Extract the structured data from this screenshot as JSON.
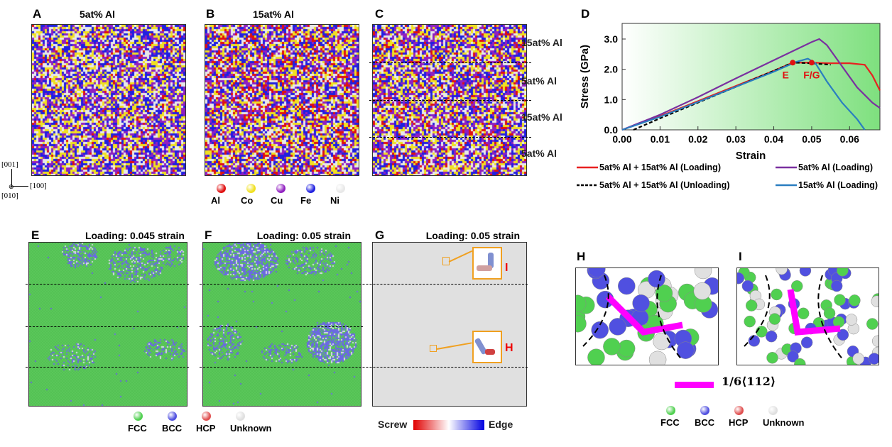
{
  "panels": {
    "a": {
      "letter": "A",
      "title": "5at% Al"
    },
    "b": {
      "letter": "B",
      "title": "15at% Al"
    },
    "c": {
      "letter": "C",
      "layers": [
        "15at% Al",
        "5at% Al",
        "15at% Al",
        "5at% Al"
      ]
    },
    "d": {
      "letter": "D"
    },
    "e": {
      "letter": "E",
      "title": "Loading: 0.045 strain"
    },
    "f": {
      "letter": "F",
      "title": "Loading: 0.05 strain"
    },
    "g": {
      "letter": "G",
      "title": "Loading: 0.05 strain",
      "inset_top": "I",
      "inset_bottom": "H",
      "scale_left": "Screw",
      "scale_right": "Edge"
    },
    "h": {
      "letter": "H"
    },
    "i": {
      "letter": "I"
    }
  },
  "axes_triad": {
    "z": "[001]",
    "x": "[100]",
    "y": "[010]"
  },
  "element_legend": [
    {
      "label": "Al",
      "color": "#e01010"
    },
    {
      "label": "Co",
      "color": "#f0e020"
    },
    {
      "label": "Cu",
      "color": "#9020c0"
    },
    {
      "label": "Fe",
      "color": "#2020e0"
    },
    {
      "label": "Ni",
      "color": "#e8e8e8"
    }
  ],
  "structure_legend": [
    {
      "label": "FCC",
      "color": "#50d050"
    },
    {
      "label": "BCC",
      "color": "#5050e0"
    },
    {
      "label": "HCP",
      "color": "#e05050"
    },
    {
      "label": "Unknown",
      "color": "#e0e0e0"
    }
  ],
  "dislocation_legend": {
    "label": "1/6⟨112⟩",
    "color": "#ff00ff"
  },
  "chart_data": {
    "type": "line",
    "xlabel": "Strain",
    "ylabel": "Stress (GPa)",
    "xlim": [
      0,
      0.068
    ],
    "ylim": [
      0,
      3.5
    ],
    "xticks": [
      "0.00",
      "0.01",
      "0.02",
      "0.03",
      "0.04",
      "0.05",
      "0.06"
    ],
    "yticks": [
      "0.0",
      "1.0",
      "2.0",
      "3.0"
    ],
    "legend": "bottom",
    "series": [
      {
        "name": "5at% Al + 15at% Al (Loading)",
        "color": "#e82020",
        "dash": false,
        "x": [
          0,
          0.01,
          0.02,
          0.03,
          0.04,
          0.045,
          0.05,
          0.055,
          0.06,
          0.064,
          0.066,
          0.068
        ],
        "y": [
          0,
          0.45,
          0.95,
          1.45,
          1.95,
          2.22,
          2.22,
          2.2,
          2.2,
          2.15,
          1.8,
          1.3
        ]
      },
      {
        "name": "5at% Al (Loading)",
        "color": "#7a30a0",
        "dash": false,
        "x": [
          0,
          0.01,
          0.02,
          0.03,
          0.04,
          0.05,
          0.052,
          0.054,
          0.058,
          0.062,
          0.066,
          0.068
        ],
        "y": [
          0,
          0.5,
          1.08,
          1.7,
          2.3,
          2.9,
          3.0,
          2.8,
          2.1,
          1.4,
          0.9,
          0.72
        ]
      },
      {
        "name": "5at% Al + 15at% Al (Unloading)",
        "color": "#000000",
        "dash": true,
        "x": [
          0.003,
          0.01,
          0.02,
          0.03,
          0.04,
          0.045,
          0.05,
          0.055
        ],
        "y": [
          0,
          0.38,
          0.9,
          1.42,
          1.95,
          2.22,
          2.2,
          2.15
        ]
      },
      {
        "name": "15at% Al (Loading)",
        "color": "#2a7ec0",
        "dash": false,
        "x": [
          0,
          0.01,
          0.02,
          0.03,
          0.04,
          0.046,
          0.049,
          0.051,
          0.054,
          0.058,
          0.062,
          0.064
        ],
        "y": [
          0,
          0.43,
          0.92,
          1.42,
          1.92,
          2.25,
          2.35,
          2.2,
          1.6,
          0.9,
          0.35,
          0
        ]
      }
    ],
    "annotations": [
      {
        "label": "E",
        "x": 0.045,
        "y": 2.22
      },
      {
        "label": "F/G",
        "x": 0.05,
        "y": 2.22
      }
    ]
  }
}
